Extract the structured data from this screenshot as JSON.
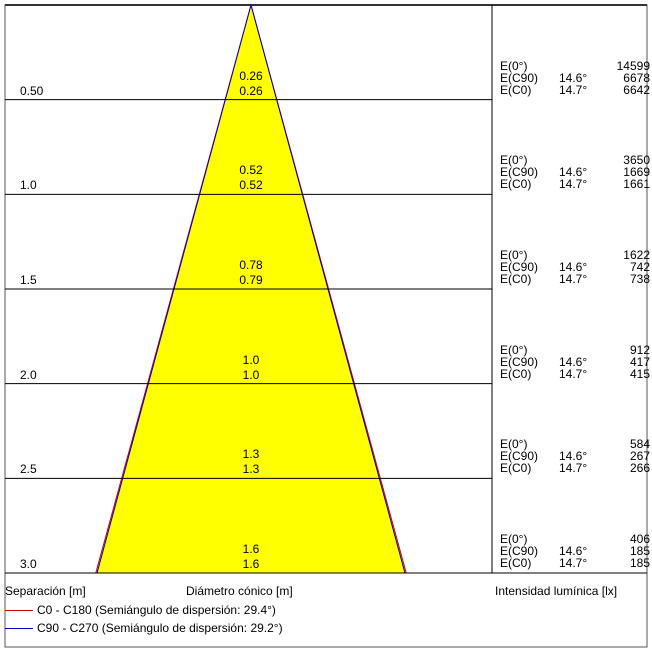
{
  "chart_data": {
    "type": "cone-diagram",
    "rows": [
      {
        "distance": "0.50",
        "d_c90": "0.26",
        "d_c0": "0.26",
        "e0": "14599",
        "e_c90": "6678",
        "e_c0": "6642"
      },
      {
        "distance": "1.0",
        "d_c90": "0.52",
        "d_c0": "0.52",
        "e0": "3650",
        "e_c90": "1669",
        "e_c0": "1661"
      },
      {
        "distance": "1.5",
        "d_c90": "0.78",
        "d_c0": "0.79",
        "e0": "1622",
        "e_c90": "742",
        "e_c0": "738"
      },
      {
        "distance": "2.0",
        "d_c90": "1.0",
        "d_c0": "1.0",
        "e0": "912",
        "e_c90": "417",
        "e_c0": "415"
      },
      {
        "distance": "2.5",
        "d_c90": "1.3",
        "d_c0": "1.3",
        "e0": "584",
        "e_c90": "267",
        "e_c0": "266"
      },
      {
        "distance": "3.0",
        "d_c90": "1.6",
        "d_c0": "1.6",
        "e0": "406",
        "e_c90": "185",
        "e_c0": "185"
      }
    ],
    "labels": {
      "e0": "E(0°)",
      "e_c90": "E(C90)",
      "e_c0": "E(C0)",
      "angle_c90": "14.6°",
      "angle_c0": "14.7°"
    },
    "cone_half_angle_deg": {
      "c0": 29.4,
      "c90": 29.2
    },
    "max_distance": 3.0
  },
  "footer": {
    "separation_label": "Separación [m]",
    "diameter_label": "Diámetro cónico [m]",
    "intensity_label": "Intensidad lumínica [lx]"
  },
  "legend": [
    {
      "label": "C0 - C180 (Semiángulo de dispersión: 29.4°)",
      "color": "#cc0000"
    },
    {
      "label": "C90 - C270 (Semiángulo de dispersión: 29.2°)",
      "color": "#0000cc"
    }
  ],
  "colors": {
    "cone_fill": "#ffff00",
    "frame": "#555555"
  }
}
